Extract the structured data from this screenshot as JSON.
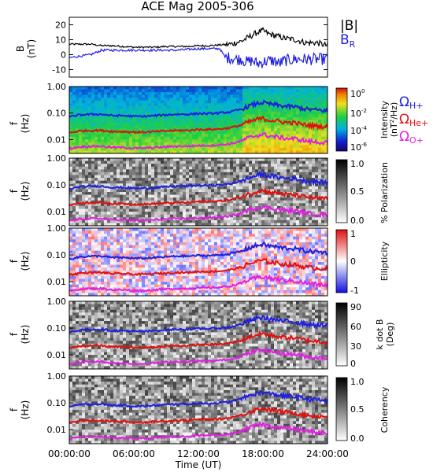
{
  "figure": {
    "title": "ACE Mag 2005-306",
    "xlabel": "Time (UT)",
    "x_ticks": [
      "00:00:00",
      "06:00:00",
      "12:00:00",
      "18:00:00",
      "24:00:00"
    ],
    "colors": {
      "total_field": "#000000",
      "radial_field": "#1f1fe0",
      "h_plus": "#1f1fe0",
      "he_plus": "#e01010",
      "o_plus": "#e020e0"
    }
  },
  "panels": {
    "b": {
      "ylabel_top": "B",
      "ylabel_bottom": "(nT)",
      "y_ticks": [
        "20",
        "10",
        "0",
        "-10"
      ],
      "legend_total": "|B|",
      "legend_radial": "B",
      "legend_radial_sub": "R"
    },
    "p1": {
      "ylabel_top": "f",
      "ylabel_bottom": "(Hz)",
      "y_ticks": [
        "1.00",
        "0.10",
        "0.01"
      ],
      "colorbar_label": "Intensity",
      "colorbar_label2": "(nT",
      "colorbar_label2_sup": "2",
      "colorbar_label2_end": "/Hz)",
      "colorbar_ticks": [
        "10",
        "10",
        "10",
        "10"
      ],
      "colorbar_exps": [
        "0",
        "-2",
        "-4",
        "-6"
      ],
      "legend_h": "Ω",
      "legend_h_sub": "H+",
      "legend_he": "Ω",
      "legend_he_sub": "He+",
      "legend_o": "Ω",
      "legend_o_sub": "O+"
    },
    "p2": {
      "ylabel_top": "f",
      "ylabel_bottom": "(Hz)",
      "y_ticks": [
        "1.00",
        "0.10",
        "0.01"
      ],
      "colorbar_label": "% Polarization",
      "colorbar_ticks": [
        "1.0",
        "0.5",
        "0.0"
      ]
    },
    "p3": {
      "ylabel_top": "f",
      "ylabel_bottom": "(Hz)",
      "y_ticks": [
        "1.00",
        "0.10",
        "0.01"
      ],
      "colorbar_label": "Ellipticity",
      "colorbar_ticks": [
        "1",
        "0",
        "-1"
      ]
    },
    "p4": {
      "ylabel_top": "f",
      "ylabel_bottom": "(Hz)",
      "y_ticks": [
        "1.00",
        "0.10",
        "0.01"
      ],
      "colorbar_label": "k dot B",
      "colorbar_label2": "(Deg)",
      "colorbar_ticks": [
        "90",
        "60",
        "30",
        "0"
      ]
    },
    "p5": {
      "ylabel_top": "f",
      "ylabel_bottom": "(Hz)",
      "y_ticks": [
        "1.00",
        "0.10",
        "0.01"
      ],
      "colorbar_label": "Coherency",
      "colorbar_ticks": [
        "1.0",
        "0.5",
        "0.0"
      ]
    }
  },
  "chart_data": {
    "type": "line",
    "title": "ACE Mag 2005-306",
    "xlabel": "Time (UT)",
    "x_unit": "hours",
    "xlim": [
      0,
      24
    ],
    "field_panel": {
      "ylabel": "B (nT)",
      "ylim": [
        -15,
        25
      ],
      "series": [
        {
          "name": "|B|",
          "x": [
            0,
            1,
            2,
            3,
            4,
            5,
            6,
            7,
            8,
            9,
            10,
            11,
            12,
            13,
            14,
            15,
            16,
            16.5,
            17,
            17.5,
            18,
            18.5,
            19,
            19.5,
            20,
            21,
            22,
            23,
            24
          ],
          "y": [
            7,
            7,
            7,
            6,
            6,
            5.5,
            5,
            5,
            5,
            5.5,
            5.5,
            5.5,
            6,
            6,
            6.5,
            7,
            9,
            11,
            13,
            15,
            16,
            14,
            13,
            12,
            11,
            10,
            8,
            8,
            6
          ]
        },
        {
          "name": "B_R",
          "x": [
            0,
            1,
            2,
            3,
            4,
            5,
            6,
            7,
            8,
            9,
            10,
            11,
            12,
            13,
            14,
            14.5,
            15,
            15.5,
            16,
            16.5,
            17,
            17.5,
            18,
            18.5,
            19,
            19.5,
            20,
            21,
            22,
            23,
            24
          ],
          "y": [
            -2,
            -1,
            0,
            3,
            3,
            3,
            3,
            3,
            3,
            3,
            3,
            3.5,
            4,
            4,
            4,
            -2,
            -2,
            -3,
            -3,
            -5,
            -4,
            -6,
            -5,
            -4,
            -4,
            -6,
            -4,
            -3,
            -3,
            -3,
            -3
          ]
        }
      ]
    },
    "frequency_panels": {
      "ylabel": "f (Hz)",
      "y_scale": "log",
      "ylim": [
        0.003,
        1.0
      ],
      "series": [
        {
          "name": "Ω_H+",
          "x": [
            0,
            1,
            2,
            3,
            4,
            5,
            6,
            7,
            8,
            9,
            10,
            11,
            12,
            13,
            14,
            15,
            16,
            16.5,
            17,
            17.5,
            18,
            18.5,
            19,
            19.5,
            20,
            21,
            22,
            23,
            24
          ],
          "y": [
            0.07,
            0.085,
            0.09,
            0.09,
            0.08,
            0.08,
            0.075,
            0.075,
            0.08,
            0.085,
            0.09,
            0.09,
            0.095,
            0.095,
            0.1,
            0.11,
            0.14,
            0.17,
            0.2,
            0.23,
            0.25,
            0.22,
            0.21,
            0.19,
            0.18,
            0.17,
            0.14,
            0.13,
            0.12
          ]
        },
        {
          "name": "Ω_He+",
          "x": [
            0,
            1,
            2,
            3,
            4,
            5,
            6,
            7,
            8,
            9,
            10,
            11,
            12,
            13,
            14,
            15,
            16,
            16.5,
            17,
            17.5,
            18,
            18.5,
            19,
            19.5,
            20,
            21,
            22,
            23,
            24
          ],
          "y": [
            0.018,
            0.021,
            0.022,
            0.022,
            0.02,
            0.02,
            0.019,
            0.019,
            0.02,
            0.021,
            0.022,
            0.022,
            0.024,
            0.024,
            0.025,
            0.028,
            0.035,
            0.043,
            0.05,
            0.058,
            0.062,
            0.055,
            0.052,
            0.048,
            0.045,
            0.042,
            0.035,
            0.032,
            0.03
          ]
        },
        {
          "name": "Ω_O+",
          "x": [
            0,
            1,
            2,
            3,
            4,
            5,
            6,
            7,
            8,
            9,
            10,
            11,
            12,
            13,
            14,
            15,
            16,
            16.5,
            17,
            17.5,
            18,
            18.5,
            19,
            19.5,
            20,
            21,
            22,
            23,
            24
          ],
          "y": [
            0.0045,
            0.0053,
            0.0056,
            0.0056,
            0.005,
            0.005,
            0.0047,
            0.0047,
            0.005,
            0.0053,
            0.0056,
            0.0056,
            0.0059,
            0.0059,
            0.0063,
            0.0069,
            0.0088,
            0.011,
            0.0125,
            0.0144,
            0.0156,
            0.0138,
            0.013,
            0.012,
            0.0113,
            0.0106,
            0.0088,
            0.008,
            0.0075
          ]
        }
      ]
    },
    "spectrogram_panels": [
      {
        "colorbar": "Intensity (nT^2/Hz)",
        "scale": "log",
        "range": [
          1e-06,
          1
        ]
      },
      {
        "colorbar": "% Polarization",
        "range": [
          0,
          1
        ]
      },
      {
        "colorbar": "Ellipticity",
        "range": [
          -1,
          1
        ]
      },
      {
        "colorbar": "k dot B (Deg)",
        "range": [
          0,
          90
        ]
      },
      {
        "colorbar": "Coherency",
        "range": [
          0,
          1
        ]
      }
    ]
  }
}
